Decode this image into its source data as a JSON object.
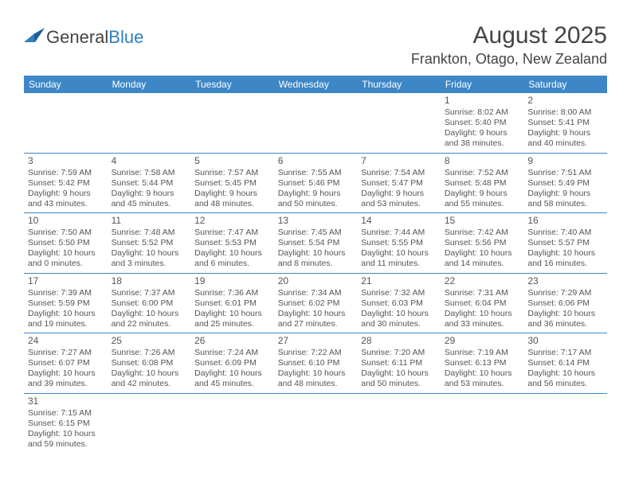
{
  "logo": {
    "prefix": "General",
    "suffix": "Blue"
  },
  "title": "August 2025",
  "location": "Frankton, Otago, New Zealand",
  "weekdays": [
    "Sunday",
    "Monday",
    "Tuesday",
    "Wednesday",
    "Thursday",
    "Friday",
    "Saturday"
  ],
  "weeks": [
    [
      null,
      null,
      null,
      null,
      null,
      {
        "d": "1",
        "sr": "8:02 AM",
        "ss": "5:40 PM",
        "dl": "9 hours and 38 minutes."
      },
      {
        "d": "2",
        "sr": "8:00 AM",
        "ss": "5:41 PM",
        "dl": "9 hours and 40 minutes."
      }
    ],
    [
      {
        "d": "3",
        "sr": "7:59 AM",
        "ss": "5:42 PM",
        "dl": "9 hours and 43 minutes."
      },
      {
        "d": "4",
        "sr": "7:58 AM",
        "ss": "5:44 PM",
        "dl": "9 hours and 45 minutes."
      },
      {
        "d": "5",
        "sr": "7:57 AM",
        "ss": "5:45 PM",
        "dl": "9 hours and 48 minutes."
      },
      {
        "d": "6",
        "sr": "7:55 AM",
        "ss": "5:46 PM",
        "dl": "9 hours and 50 minutes."
      },
      {
        "d": "7",
        "sr": "7:54 AM",
        "ss": "5:47 PM",
        "dl": "9 hours and 53 minutes."
      },
      {
        "d": "8",
        "sr": "7:52 AM",
        "ss": "5:48 PM",
        "dl": "9 hours and 55 minutes."
      },
      {
        "d": "9",
        "sr": "7:51 AM",
        "ss": "5:49 PM",
        "dl": "9 hours and 58 minutes."
      }
    ],
    [
      {
        "d": "10",
        "sr": "7:50 AM",
        "ss": "5:50 PM",
        "dl": "10 hours and 0 minutes."
      },
      {
        "d": "11",
        "sr": "7:48 AM",
        "ss": "5:52 PM",
        "dl": "10 hours and 3 minutes."
      },
      {
        "d": "12",
        "sr": "7:47 AM",
        "ss": "5:53 PM",
        "dl": "10 hours and 6 minutes."
      },
      {
        "d": "13",
        "sr": "7:45 AM",
        "ss": "5:54 PM",
        "dl": "10 hours and 8 minutes."
      },
      {
        "d": "14",
        "sr": "7:44 AM",
        "ss": "5:55 PM",
        "dl": "10 hours and 11 minutes."
      },
      {
        "d": "15",
        "sr": "7:42 AM",
        "ss": "5:56 PM",
        "dl": "10 hours and 14 minutes."
      },
      {
        "d": "16",
        "sr": "7:40 AM",
        "ss": "5:57 PM",
        "dl": "10 hours and 16 minutes."
      }
    ],
    [
      {
        "d": "17",
        "sr": "7:39 AM",
        "ss": "5:59 PM",
        "dl": "10 hours and 19 minutes."
      },
      {
        "d": "18",
        "sr": "7:37 AM",
        "ss": "6:00 PM",
        "dl": "10 hours and 22 minutes."
      },
      {
        "d": "19",
        "sr": "7:36 AM",
        "ss": "6:01 PM",
        "dl": "10 hours and 25 minutes."
      },
      {
        "d": "20",
        "sr": "7:34 AM",
        "ss": "6:02 PM",
        "dl": "10 hours and 27 minutes."
      },
      {
        "d": "21",
        "sr": "7:32 AM",
        "ss": "6:03 PM",
        "dl": "10 hours and 30 minutes."
      },
      {
        "d": "22",
        "sr": "7:31 AM",
        "ss": "6:04 PM",
        "dl": "10 hours and 33 minutes."
      },
      {
        "d": "23",
        "sr": "7:29 AM",
        "ss": "6:06 PM",
        "dl": "10 hours and 36 minutes."
      }
    ],
    [
      {
        "d": "24",
        "sr": "7:27 AM",
        "ss": "6:07 PM",
        "dl": "10 hours and 39 minutes."
      },
      {
        "d": "25",
        "sr": "7:26 AM",
        "ss": "6:08 PM",
        "dl": "10 hours and 42 minutes."
      },
      {
        "d": "26",
        "sr": "7:24 AM",
        "ss": "6:09 PM",
        "dl": "10 hours and 45 minutes."
      },
      {
        "d": "27",
        "sr": "7:22 AM",
        "ss": "6:10 PM",
        "dl": "10 hours and 48 minutes."
      },
      {
        "d": "28",
        "sr": "7:20 AM",
        "ss": "6:11 PM",
        "dl": "10 hours and 50 minutes."
      },
      {
        "d": "29",
        "sr": "7:19 AM",
        "ss": "6:13 PM",
        "dl": "10 hours and 53 minutes."
      },
      {
        "d": "30",
        "sr": "7:17 AM",
        "ss": "6:14 PM",
        "dl": "10 hours and 56 minutes."
      }
    ],
    [
      {
        "d": "31",
        "sr": "7:15 AM",
        "ss": "6:15 PM",
        "dl": "10 hours and 59 minutes."
      },
      null,
      null,
      null,
      null,
      null,
      null
    ]
  ],
  "labels": {
    "sunrise": "Sunrise: ",
    "sunset": "Sunset: ",
    "daylight": "Daylight: "
  },
  "colors": {
    "header_bg": "#3d87c7",
    "rule": "#3d87c7",
    "text": "#555555"
  }
}
